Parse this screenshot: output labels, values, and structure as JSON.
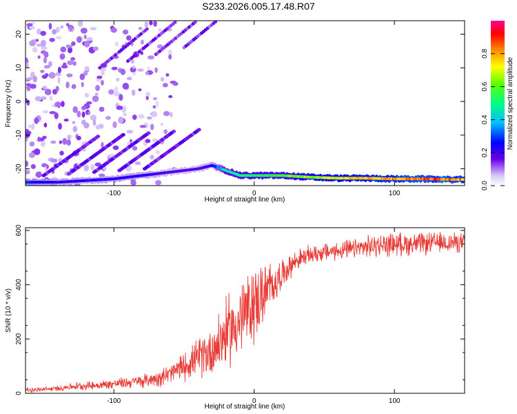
{
  "title": "S233.2026.005.17.48.R07",
  "colors": {
    "snr_line": "#e83a34",
    "spectro_low": "#dcd0f8",
    "spectro_mid": "#6a00e8",
    "spectro_high": "#ff0000"
  },
  "chart_data": [
    {
      "type": "heatmap",
      "title": "S233.2026.005.17.48.R07",
      "xlabel": "Height of straight line (km)",
      "ylabel": "Frequency (Hz)",
      "xlim": [
        -163,
        150
      ],
      "ylim": [
        -25,
        24
      ],
      "xticks": [
        -100,
        0,
        100
      ],
      "xtick_labels": [
        "-100",
        "0",
        "100"
      ],
      "yticks": [
        -20,
        -10,
        0,
        10,
        20
      ],
      "ytick_labels": [
        "-20",
        "-10",
        "0",
        "10",
        "20"
      ],
      "colorbar": {
        "label": "Normalized spectral amplitude",
        "range": [
          0,
          1
        ],
        "ticks": [
          0.0,
          0.2,
          0.4,
          0.6,
          0.8
        ],
        "tick_labels": [
          "0.0",
          "0.2",
          "0.4",
          "0.6",
          "0.8"
        ]
      },
      "ridge": {
        "x": [
          -160,
          -140,
          -120,
          -100,
          -80,
          -60,
          -40,
          -30,
          -20,
          -10,
          0,
          10,
          20,
          40,
          60,
          80,
          100,
          120,
          140,
          150
        ],
        "freq": [
          -24,
          -24,
          -23.5,
          -23,
          -22,
          -21,
          -20,
          -19,
          -20.5,
          -22,
          -22,
          -22,
          -22,
          -22.5,
          -22.8,
          -22.8,
          -23,
          -23,
          -23.2,
          -23.2
        ],
        "amplitude": [
          0.3,
          0.25,
          0.25,
          0.25,
          0.25,
          0.2,
          0.2,
          0.25,
          0.5,
          0.55,
          0.6,
          0.6,
          0.65,
          0.7,
          0.8,
          0.85,
          0.9,
          0.95,
          0.95,
          0.9
        ]
      },
      "grid": false
    },
    {
      "type": "line",
      "xlabel": "Height of straight line (km)",
      "ylabel": "SNR (10 * v/v)",
      "xlim": [
        -163,
        150
      ],
      "ylim": [
        0,
        610
      ],
      "xticks": [
        -100,
        0,
        100
      ],
      "xtick_labels": [
        "-100",
        "0",
        "100"
      ],
      "yticks": [
        0,
        200,
        400,
        600
      ],
      "ytick_labels": [
        "0",
        "200",
        "400",
        "600"
      ],
      "grid": false,
      "series": [
        {
          "x": [
            -163,
            -150,
            -140,
            -130,
            -120,
            -110,
            -100,
            -90,
            -80,
            -70,
            -60,
            -50,
            -40,
            -30,
            -20,
            -10,
            0,
            10,
            20,
            30,
            40,
            50,
            60,
            70,
            80,
            90,
            100,
            110,
            120,
            130,
            140,
            150
          ],
          "mean": [
            12,
            14,
            18,
            25,
            28,
            30,
            35,
            40,
            45,
            55,
            70,
            100,
            130,
            160,
            220,
            270,
            330,
            380,
            440,
            490,
            510,
            520,
            525,
            530,
            540,
            545,
            550,
            550,
            550,
            555,
            555,
            555
          ],
          "spread": [
            10,
            10,
            12,
            15,
            18,
            20,
            22,
            25,
            28,
            35,
            45,
            60,
            80,
            120,
            150,
            170,
            170,
            120,
            60,
            45,
            40,
            40,
            40,
            42,
            45,
            50,
            50,
            50,
            48,
            45,
            45,
            40
          ]
        }
      ]
    }
  ]
}
